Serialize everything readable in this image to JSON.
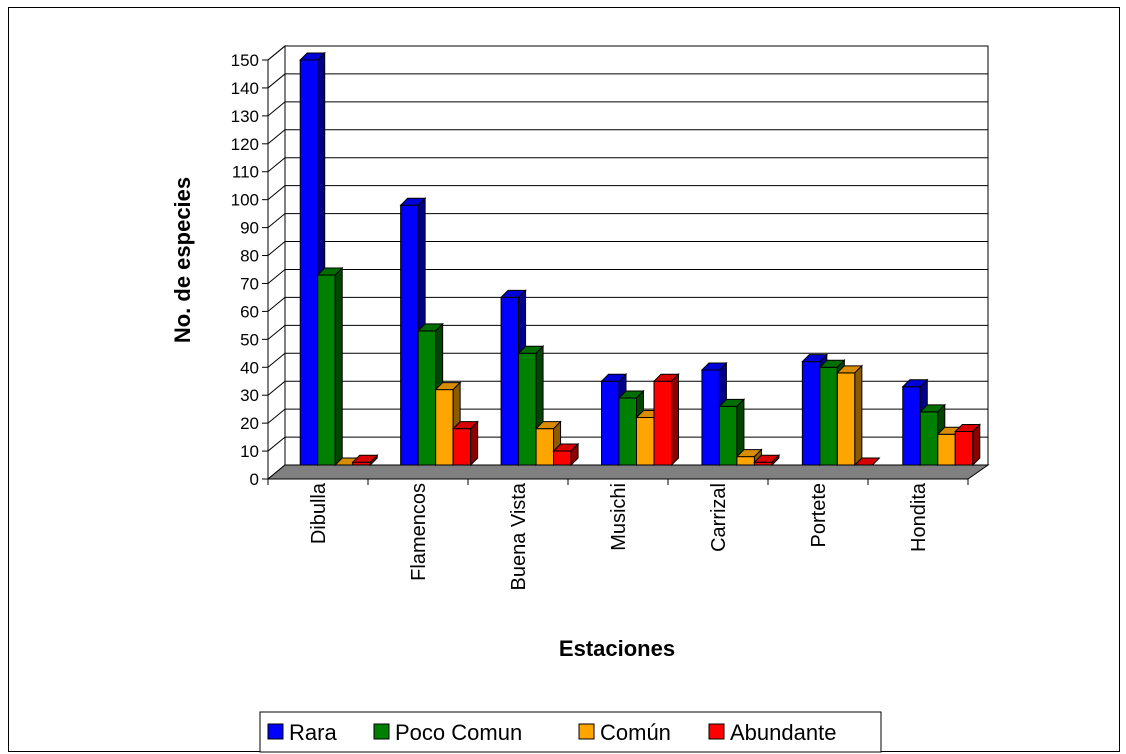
{
  "chart_data": {
    "type": "bar",
    "xlabel": "Estaciones",
    "ylabel": "No. de especies",
    "ylim": [
      0,
      150
    ],
    "yticks": [
      0,
      10,
      20,
      30,
      40,
      50,
      60,
      70,
      80,
      90,
      100,
      110,
      120,
      130,
      140,
      150
    ],
    "grid": true,
    "legend_position": "bottom",
    "categories": [
      "Dibulla",
      "Flamencos",
      "Buena Vista",
      "Musichi",
      "Carrizal",
      "Portete",
      "Hondita"
    ],
    "series": [
      {
        "name": "Rara",
        "color": "#0000ff",
        "values": [
          145,
          93,
          60,
          30,
          34,
          37,
          28
        ]
      },
      {
        "name": "Poco Comun",
        "color": "#008000",
        "values": [
          68,
          48,
          40,
          24,
          21,
          35,
          19
        ]
      },
      {
        "name": "Común",
        "color": "#ffa500",
        "values": [
          0,
          27,
          13,
          17,
          3,
          33,
          11
        ]
      },
      {
        "name": "Abundante",
        "color": "#ff0000",
        "values": [
          1,
          13,
          5,
          30,
          1,
          0,
          12
        ]
      }
    ]
  }
}
